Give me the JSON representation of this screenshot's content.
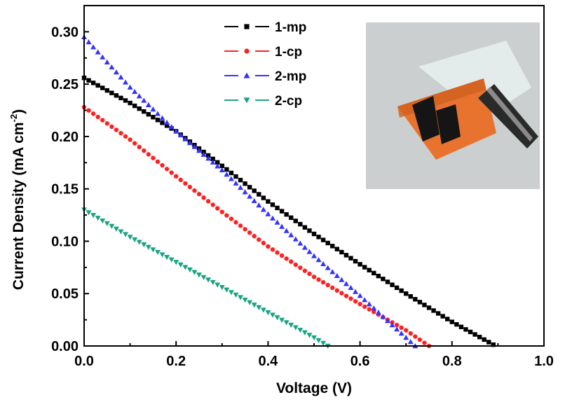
{
  "chart_data": {
    "type": "scatter",
    "title": "",
    "xlabel": "Voltage (V)",
    "ylabel": {
      "main": "Current Density (mA cm",
      "superscript": "-2",
      "close": ")"
    },
    "xlim": [
      0.0,
      1.0
    ],
    "ylim": [
      0.0,
      0.325
    ],
    "xticks": [
      0.0,
      0.2,
      0.4,
      0.6,
      0.8,
      1.0
    ],
    "xtick_labels": [
      "0.0",
      "0.2",
      "0.4",
      "0.6",
      "0.8",
      "1.0"
    ],
    "yticks": [
      0.0,
      0.05,
      0.1,
      0.15,
      0.2,
      0.25,
      0.3
    ],
    "ytick_labels": [
      "0.00",
      "0.05",
      "0.10",
      "0.15",
      "0.20",
      "0.25",
      "0.30"
    ],
    "grid": false,
    "legend_position": "top-center",
    "inset": "photo",
    "series": [
      {
        "name": "1-mp",
        "color": "#000000",
        "marker": "square",
        "x": [
          0.0,
          0.1,
          0.2,
          0.3,
          0.4,
          0.5,
          0.6,
          0.7,
          0.8,
          0.85,
          0.895
        ],
        "y": [
          0.256,
          0.232,
          0.205,
          0.172,
          0.138,
          0.107,
          0.078,
          0.05,
          0.023,
          0.011,
          0.0
        ]
      },
      {
        "name": "1-cp",
        "color": "#ff2020",
        "marker": "circle",
        "x": [
          0.0,
          0.1,
          0.2,
          0.3,
          0.4,
          0.5,
          0.6,
          0.7,
          0.75
        ],
        "y": [
          0.228,
          0.197,
          0.162,
          0.128,
          0.095,
          0.066,
          0.04,
          0.015,
          0.0
        ]
      },
      {
        "name": "2-mp",
        "color": "#3333ff",
        "marker": "triangle-up",
        "x": [
          0.0,
          0.1,
          0.2,
          0.3,
          0.4,
          0.5,
          0.6,
          0.7,
          0.72
        ],
        "y": [
          0.295,
          0.247,
          0.205,
          0.168,
          0.126,
          0.086,
          0.048,
          0.008,
          0.0
        ]
      },
      {
        "name": "2-cp",
        "color": "#1aa383",
        "marker": "triangle-down",
        "x": [
          0.0,
          0.1,
          0.2,
          0.3,
          0.4,
          0.5,
          0.53
        ],
        "y": [
          0.13,
          0.104,
          0.08,
          0.056,
          0.032,
          0.008,
          0.0
        ]
      }
    ]
  }
}
